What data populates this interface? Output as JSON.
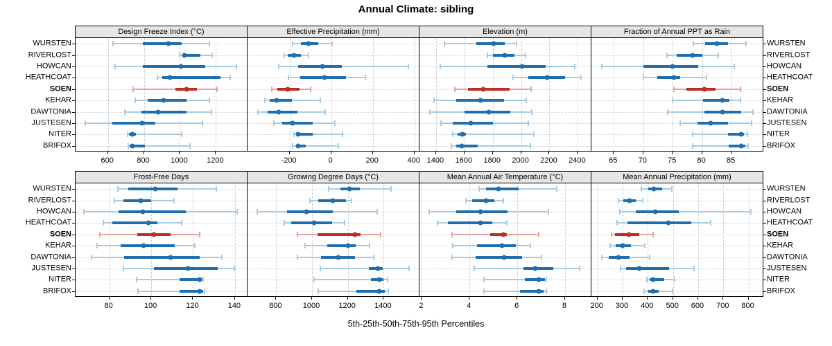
{
  "title": "Annual Climate: sibling",
  "caption": "5th-25th-50th-75th-95th Percentiles",
  "stations": [
    "WURSTEN",
    "RIVERLOST",
    "HOWCAN",
    "HEATHCOAT",
    "SOEN",
    "KEHAR",
    "DAWTONIA",
    "JUSTESEN",
    "NITER",
    "BRIFOX"
  ],
  "highlight_station": "SOEN",
  "colors": {
    "blue": "#1f6fb0",
    "blue_light": "#a8cbe4",
    "red": "#bf2c25",
    "red_light": "#e2a69f",
    "strip_bg": "#e6e6e6",
    "grid": "#c3c3c3"
  },
  "chart_data": {
    "type": "dotplot",
    "subtype": "trellis-percentile-dotplot",
    "percentile_labels": [
      "5th",
      "25th",
      "50th",
      "75th",
      "95th"
    ],
    "legend_note": "each row shows 5th-25th-50th-75th-95th percentiles; SOEN highlighted red",
    "grid": "dotted",
    "panels": [
      {
        "title": "Design Freeze Index (°C)",
        "row": 1,
        "col": 1,
        "ticks": [
          600,
          800,
          1000,
          1200
        ],
        "xlim": [
          420,
          1376
        ],
        "values": {
          "WURSTEN": [
            630,
            795,
            935,
            1010,
            1165
          ],
          "RIVERLOST": [
            1000,
            1012,
            1025,
            1115,
            1180
          ],
          "HOWCAN": [
            640,
            795,
            1005,
            1140,
            1315
          ],
          "HEATHCOAT": [
            875,
            900,
            945,
            1225,
            1280
          ],
          "SOEN": [
            740,
            975,
            1035,
            1095,
            1205
          ],
          "KEHAR": [
            750,
            820,
            910,
            1035,
            1165
          ],
          "DAWTONIA": [
            695,
            785,
            880,
            1035,
            1175
          ],
          "JUSTESEN": [
            475,
            625,
            790,
            865,
            1125
          ],
          "NITER": [
            710,
            718,
            735,
            755,
            1010
          ],
          "BRIFOX": [
            712,
            720,
            735,
            805,
            1055
          ]
        }
      },
      {
        "title": "Effective Precipitation (mm)",
        "row": 1,
        "col": 2,
        "ticks": [
          -200,
          0,
          200,
          400
        ],
        "xlim": [
          -402,
          424
        ],
        "values": {
          "WURSTEN": [
            -185,
            -147,
            -108,
            -61,
            5
          ],
          "RIVERLOST": [
            -226,
            -208,
            -180,
            -144,
            -108
          ],
          "HOWCAN": [
            -252,
            -159,
            -42,
            52,
            372
          ],
          "HEATHCOAT": [
            -206,
            -150,
            -31,
            72,
            164
          ],
          "SOEN": [
            -286,
            -258,
            -208,
            -152,
            -100
          ],
          "KEHAR": [
            -319,
            -294,
            -263,
            -189,
            -52
          ],
          "DAWTONIA": [
            -352,
            -306,
            -252,
            -163,
            -30
          ],
          "JUSTESEN": [
            -274,
            -237,
            -187,
            -89,
            17
          ],
          "NITER": [
            -178,
            -168,
            -158,
            -90,
            55
          ],
          "BRIFOX": [
            -186,
            -170,
            -158,
            -122,
            33
          ]
        }
      },
      {
        "title": "Elevation (m)",
        "row": 1,
        "col": 3,
        "ticks": [
          1400,
          1600,
          1800,
          2000,
          2200,
          2400
        ],
        "xlim": [
          1283,
          2496
        ],
        "values": {
          "WURSTEN": [
            1460,
            1682,
            1808,
            1885,
            1966
          ],
          "RIVERLOST": [
            1764,
            1803,
            1885,
            1955,
            2031
          ],
          "HOWCAN": [
            1428,
            1764,
            2009,
            2172,
            2379
          ],
          "HEATHCOAT": [
            1943,
            2052,
            2183,
            2309,
            2423
          ],
          "SOEN": [
            1531,
            1624,
            1731,
            1917,
            2069
          ],
          "KEHAR": [
            1384,
            1542,
            1715,
            1878,
            2036
          ],
          "DAWTONIA": [
            1356,
            1601,
            1770,
            1922,
            2074
          ],
          "JUSTESEN": [
            1433,
            1519,
            1645,
            1803,
            2052
          ],
          "NITER": [
            1519,
            1552,
            1584,
            1612,
            2090
          ],
          "BRIFOX": [
            1509,
            1542,
            1579,
            1694,
            2064
          ]
        }
      },
      {
        "title": "Fraction of Annual PPT as Rain",
        "row": 1,
        "col": 4,
        "ticks": [
          65,
          70,
          75,
          80,
          85
        ],
        "xlim": [
          61.2,
          90.4
        ],
        "values": {
          "WURSTEN": [
            78.5,
            80.5,
            82.5,
            84.4,
            87.5
          ],
          "RIVERLOST": [
            74,
            75.7,
            78.4,
            80,
            82.7
          ],
          "HOWCAN": [
            63,
            70,
            75,
            79.3,
            85.4
          ],
          "HEATHCOAT": [
            70,
            72.4,
            75.2,
            76.3,
            80.7
          ],
          "SOEN": [
            75.2,
            77.3,
            80.4,
            82.3,
            86.5
          ],
          "KEHAR": [
            75,
            80.1,
            83.5,
            84.6,
            86.5
          ],
          "DAWTONIA": [
            74.2,
            80.4,
            83.5,
            86.6,
            88.6
          ],
          "JUSTESEN": [
            76.3,
            79.2,
            81.5,
            84.4,
            88.4
          ],
          "NITER": [
            78.4,
            84.4,
            86.6,
            87.1,
            87.7
          ],
          "BRIFOX": [
            78.4,
            84.5,
            86.6,
            87.3,
            87.8
          ]
        }
      },
      {
        "title": "Frost-Free Days",
        "row": 2,
        "col": 1,
        "ticks": [
          80,
          100,
          120,
          140
        ],
        "xlim": [
          63.9,
          146
        ],
        "values": {
          "WURSTEN": [
            84,
            89,
            102,
            112.5,
            131
          ],
          "RIVERLOST": [
            82.5,
            86.6,
            95,
            100,
            111
          ],
          "HOWCAN": [
            68,
            84.4,
            96,
            116.7,
            141
          ],
          "HEATHCOAT": [
            77,
            81.4,
            98.7,
            102.8,
            114.7
          ],
          "SOEN": [
            75.6,
            93.5,
            101.3,
            109.4,
            123
          ],
          "KEHAR": [
            74.2,
            85.5,
            96.2,
            111.4,
            121
          ],
          "DAWTONIA": [
            71.5,
            87,
            109.2,
            123.3,
            133.7
          ],
          "JUSTESEN": [
            86.6,
            101.3,
            117.5,
            131.8,
            139.8
          ],
          "NITER": [
            92.9,
            113.4,
            123.3,
            124.1,
            124.9
          ],
          "BRIFOX": [
            93.8,
            113.4,
            123.3,
            124.9,
            125.5
          ]
        }
      },
      {
        "title": "Growing Degree Days (°C)",
        "row": 2,
        "col": 2,
        "ticks": [
          800,
          1000,
          1200,
          1400
        ],
        "xlim": [
          640,
          1600
        ],
        "values": {
          "WURSTEN": [
            1094,
            1159,
            1210,
            1266,
            1443
          ],
          "RIVERLOST": [
            987,
            1034,
            1116,
            1188,
            1219
          ],
          "HOWCAN": [
            694,
            862,
            969,
            1116,
            1365
          ],
          "HEATHCOAT": [
            845,
            884,
            1013,
            1111,
            1181
          ],
          "SOEN": [
            917,
            1030,
            1240,
            1271,
            1382
          ],
          "KEHAR": [
            961,
            1085,
            1201,
            1245,
            1323
          ],
          "DAWTONIA": [
            917,
            1052,
            1146,
            1240,
            1343
          ],
          "JUSTESEN": [
            1046,
            1317,
            1369,
            1395,
            1542
          ],
          "NITER": [
            1013,
            1330,
            1374,
            1400,
            1420
          ],
          "BRIFOX": [
            1034,
            1249,
            1374,
            1405,
            1426
          ]
        }
      },
      {
        "title": "Mean Annual Air Temperature (°C)",
        "row": 2,
        "col": 3,
        "ticks": [
          2,
          4,
          6,
          8
        ],
        "xlim": [
          1.9,
          9.1
        ],
        "values": {
          "WURSTEN": [
            4.4,
            4.7,
            5.2,
            6.05,
            7.65
          ],
          "RIVERLOST": [
            3.85,
            4.1,
            4.7,
            5.05,
            5.4
          ],
          "HOWCAN": [
            2.3,
            3.45,
            4.45,
            5.6,
            7.3
          ],
          "HEATHCOAT": [
            2.65,
            3.1,
            4.45,
            4.95,
            5.55
          ],
          "SOEN": [
            3.25,
            4.85,
            5.4,
            5.55,
            6.9
          ],
          "KEHAR": [
            3.3,
            4.3,
            5.35,
            5.95,
            6.55
          ],
          "DAWTONIA": [
            3.25,
            4.25,
            5.45,
            6.2,
            7.0
          ],
          "JUSTESEN": [
            4.2,
            6.25,
            6.75,
            7.5,
            8.6
          ],
          "NITER": [
            4.6,
            6.3,
            6.9,
            7.15,
            7.2
          ],
          "BRIFOX": [
            4.6,
            6.1,
            6.9,
            7.1,
            7.2
          ]
        }
      },
      {
        "title": "Mean Annual Precipitation (mm)",
        "row": 2,
        "col": 4,
        "ticks": [
          200,
          300,
          400,
          500,
          600,
          700,
          800
        ],
        "xlim": [
          176,
          859
        ],
        "values": {
          "WURSTEN": [
            375,
            403,
            425,
            458,
            495
          ],
          "RIVERLOST": [
            283,
            302,
            327,
            351,
            379
          ],
          "HOWCAN": [
            290,
            351,
            430,
            522,
            810
          ],
          "HEATHCOAT": [
            278,
            320,
            483,
            572,
            650
          ],
          "SOEN": [
            256,
            269,
            324,
            366,
            421
          ],
          "KEHAR": [
            250,
            272,
            299,
            333,
            388
          ],
          "DAWTONIA": [
            217,
            244,
            283,
            327,
            406
          ],
          "JUSTESEN": [
            293,
            315,
            366,
            485,
            583
          ],
          "NITER": [
            397,
            406,
            421,
            464,
            507
          ],
          "BRIFOX": [
            384,
            403,
            421,
            443,
            498
          ]
        }
      }
    ]
  }
}
